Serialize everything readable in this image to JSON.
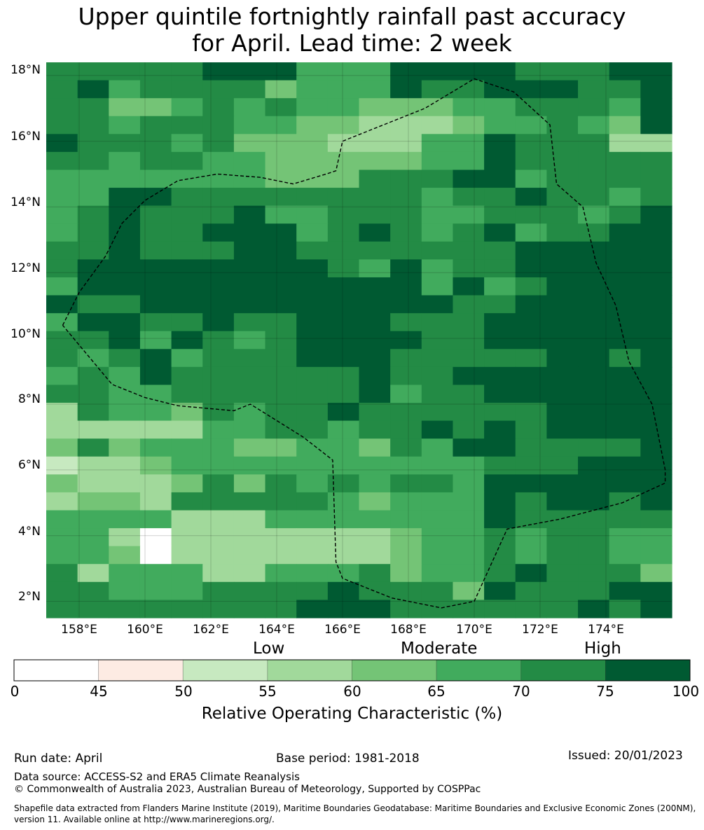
{
  "title": {
    "line1": "Upper quintile fortnightly rainfall past accuracy",
    "line2": "for April. Lead time: 2 week"
  },
  "map": {
    "lon_range": [
      157,
      176
    ],
    "lat_range": [
      1.5,
      18.4
    ],
    "lat_labels": [
      "18°N",
      "16°N",
      "14°N",
      "12°N",
      "10°N",
      "8°N",
      "6°N",
      "4°N",
      "2°N"
    ],
    "lon_labels": [
      "158°E",
      "160°E",
      "162°E",
      "164°E",
      "166°E",
      "168°E",
      "170°E",
      "172°E",
      "174°E"
    ],
    "colors": [
      "#ffffff",
      "#fdebe3",
      "#c7e9c0",
      "#a1d99b",
      "#74c476",
      "#41ab5d",
      "#238b45",
      "#005a32"
    ],
    "grid": [
      "66666777555777766677",
      "67566664555766777667",
      "66445656554445566657",
      "66566655443334556547",
      "76665644433355766633",
      "66566554444455766666",
      "55555554446667756666",
      "55776666666656676656",
      "56766675566655666567",
      "56766777567656756677",
      "66766677666666677777",
      "67777777765756677777",
      "57777777777757567777",
      "76677777777776677777",
      "57766766777666777777",
      "66757656777766777777",
      "65675666777666667767",
      "56576666667667777777",
      "66556666667566777777",
      "36554656676666667777",
      "33333556656676767777",
      "46455544554657766667",
      "23345555555555666777",
      "43334646565665777777",
      "34436666654555767767",
      "55553335555555766666",
      "55303333333455656655",
      "55403333333455656655",
      "63555335556455676664",
      "66555666676664766677",
      "66666666777666666767"
    ],
    "boundary_lonlat": [
      [
        157.5,
        10.4
      ],
      [
        158.0,
        11.4
      ],
      [
        158.8,
        12.5
      ],
      [
        159.3,
        13.5
      ],
      [
        160.0,
        14.2
      ],
      [
        161.0,
        14.8
      ],
      [
        162.2,
        15.0
      ],
      [
        163.5,
        14.9
      ],
      [
        164.5,
        14.7
      ],
      [
        165.5,
        15.0
      ],
      [
        165.8,
        15.1
      ],
      [
        166.0,
        16.0
      ],
      [
        167.0,
        16.4
      ],
      [
        168.5,
        17.0
      ],
      [
        170.0,
        17.9
      ],
      [
        171.2,
        17.5
      ],
      [
        172.3,
        16.5
      ],
      [
        172.5,
        14.7
      ],
      [
        173.3,
        14.0
      ],
      [
        173.7,
        12.3
      ],
      [
        174.3,
        11.0
      ],
      [
        174.7,
        9.3
      ],
      [
        175.4,
        8.0
      ],
      [
        175.8,
        6.0
      ],
      [
        175.8,
        5.6
      ],
      [
        174.5,
        5.0
      ],
      [
        172.6,
        4.5
      ],
      [
        171.0,
        4.2
      ],
      [
        170.0,
        2.0
      ],
      [
        169.0,
        1.8
      ],
      [
        167.5,
        2.1
      ],
      [
        166.0,
        2.7
      ],
      [
        165.8,
        3.2
      ],
      [
        165.7,
        6.3
      ],
      [
        164.8,
        7.0
      ],
      [
        163.2,
        8.0
      ],
      [
        162.7,
        7.8
      ],
      [
        161.0,
        7.95
      ],
      [
        160.0,
        8.2
      ],
      [
        159.0,
        8.6
      ],
      [
        158.5,
        9.2
      ],
      [
        157.5,
        10.4
      ]
    ]
  },
  "colorbar": {
    "categories": [
      "Low",
      "Moderate",
      "High"
    ],
    "ticks": [
      "0",
      "45",
      "50",
      "55",
      "60",
      "65",
      "70",
      "75",
      "100"
    ],
    "title": "Relative Operating Characteristic (%)"
  },
  "footer": {
    "run_date": "Run date: April",
    "base_period": "Base period: 1981-2018",
    "issued": "Issued: 20/01/2023",
    "data_source": "Data source: ACCESS-S2 and ERA5 Climate Reanalysis",
    "copyright": "© Commonwealth of Australia 2023, Australian Bureau of Meteorology, Supported by COSPPac",
    "shapefile_line1": "Shapefile data extracted from Flanders Marine Institute (2019), Maritime Boundaries Geodatabase: Maritime Boundaries and Exclusive Economic Zones (200NM),",
    "shapefile_line2": "version 11. Available online at http://www.marineregions.org/."
  }
}
